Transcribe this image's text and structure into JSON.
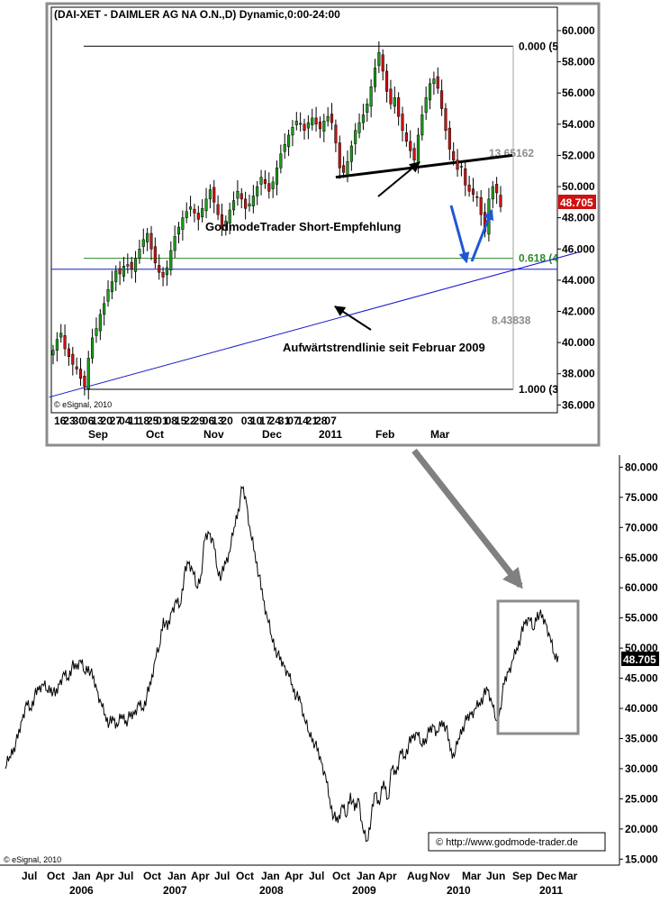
{
  "chart_data": [
    {
      "type": "candlestick",
      "title": "(DAI-XET - DAIMLER AG NA O.N.,D) Dynamic,0:00-24:00",
      "watermark": "© eSignal, 2010",
      "y_axis": {
        "position": "right",
        "ylim": [
          35.5,
          61.5
        ],
        "ticks": [
          "36.000",
          "38.000",
          "40.000",
          "42.000",
          "44.000",
          "46.000",
          "48.000",
          "50.000",
          "52.000",
          "54.000",
          "56.000",
          "58.000",
          "60.000"
        ]
      },
      "x_axis": {
        "day_labels": [
          "16",
          "23",
          "30",
          "06",
          "13",
          "20",
          "27",
          "04",
          "11",
          "18",
          "25",
          "01",
          "08",
          "15",
          "22",
          "29",
          "06",
          "13",
          "20",
          "03",
          "10",
          "17",
          "24",
          "31",
          "07",
          "14",
          "21",
          "28",
          "07"
        ],
        "month_labels": [
          "Sep",
          "Oct",
          "Nov",
          "Dec",
          "2011",
          "Feb",
          "Mar"
        ]
      },
      "last_price": "48.705",
      "last_price_color": "#d11010",
      "up_color": "#1a9e1a",
      "down_color": "#cc1111",
      "close_series": [
        39.5,
        40.2,
        40.6,
        39.6,
        39.1,
        38.6,
        38.3,
        37.7,
        37.2,
        39.0,
        40.3,
        40.9,
        41.8,
        42.5,
        43.4,
        43.9,
        44.6,
        44.4,
        44.9,
        45.0,
        44.7,
        45.4,
        46.0,
        46.6,
        47.0,
        46.0,
        45.1,
        44.5,
        44.2,
        44.8,
        45.9,
        46.8,
        47.4,
        48.0,
        48.4,
        48.7,
        48.3,
        47.9,
        48.6,
        49.2,
        49.8,
        49.0,
        48.2,
        47.3,
        47.8,
        48.5,
        49.1,
        49.7,
        49.2,
        48.6,
        48.9,
        49.4,
        50.0,
        50.6,
        50.2,
        49.7,
        50.3,
        51.2,
        52.1,
        52.7,
        53.3,
        53.8,
        54.2,
        54.0,
        53.6,
        54.1,
        54.4,
        54.0,
        53.7,
        54.2,
        54.5,
        54.1,
        52.8,
        51.2,
        50.9,
        51.6,
        52.6,
        53.6,
        54.1,
        54.6,
        55.3,
        56.4,
        57.6,
        58.6,
        57.4,
        56.1,
        55.3,
        55.7,
        54.5,
        53.6,
        52.9,
        52.3,
        51.7,
        53.3,
        54.6,
        55.7,
        56.6,
        56.9,
        56.3,
        55.0,
        53.6,
        52.4,
        51.7,
        51.1,
        51.3,
        50.1,
        49.7,
        49.5,
        49.3,
        48.2,
        47.1,
        49.2,
        50.0,
        49.6,
        48.705
      ],
      "fibonacci": {
        "levels": [
          {
            "label": "0.000 (5",
            "value": 59.0,
            "color": "#000000"
          },
          {
            "label": "0.618 (4",
            "value": 45.4,
            "color": "#2a8a2a"
          },
          {
            "label": "1.000 (3",
            "value": 37.0,
            "color": "#000000"
          }
        ],
        "ranges": [
          "13.65162",
          "8.43838"
        ]
      },
      "hline_value": 44.7,
      "hline_color": "#1818cc",
      "neckline": {
        "from_index": 72,
        "from_value": 50.6,
        "to_index": 117,
        "to_value": 52.0
      },
      "trendline": {
        "from_index": -1,
        "from_value": 36.5,
        "to_index": 134,
        "to_value": 45.8,
        "color": "#1818cc"
      },
      "annotations": [
        "GodmodeTrader Short-Empfehlung",
        "Aufwärtstrendlinie seit Februar 2009"
      ]
    },
    {
      "type": "line",
      "watermark": "© eSignal, 2010",
      "y_axis": {
        "position": "right",
        "ylim": [
          14.0,
          82.0
        ],
        "ticks": [
          "15.000",
          "20.000",
          "25.000",
          "30.000",
          "35.000",
          "40.000",
          "45.000",
          "50.000",
          "55.000",
          "60.000",
          "65.000",
          "70.000",
          "75.000",
          "80.000"
        ]
      },
      "x_axis": {
        "month_labels": [
          "Jul",
          "Oct",
          "Jan",
          "Apr",
          "Jul",
          "Oct",
          "Jan",
          "Apr",
          "Jul",
          "Oct",
          "Jan",
          "Apr",
          "Jul",
          "Oct",
          "Jan",
          "Apr",
          "Aug",
          "Nov",
          "Mar",
          "Jun",
          "Sep",
          "Dec",
          "Mar"
        ],
        "year_labels": [
          "2006",
          "2007",
          "2008",
          "2009",
          "2010",
          "2011"
        ]
      },
      "last_price": "48.705",
      "last_price_color": "#000000",
      "close_series": [
        30.0,
        32.0,
        33.5,
        35.0,
        38.0,
        41.0,
        40.0,
        42.0,
        43.0,
        44.0,
        43.0,
        43.5,
        42.0,
        44.0,
        46.0,
        45.0,
        47.0,
        46.5,
        48.0,
        46.0,
        47.0,
        45.0,
        43.0,
        41.0,
        39.0,
        37.5,
        38.0,
        37.0,
        39.0,
        38.0,
        38.5,
        39.0,
        41.0,
        40.0,
        42.0,
        44.0,
        48.0,
        50.0,
        55.0,
        53.0,
        56.0,
        58.0,
        57.0,
        62.0,
        64.0,
        63.0,
        60.0,
        62.0,
        68.0,
        69.0,
        68.0,
        63.0,
        62.0,
        64.0,
        66.0,
        70.0,
        73.0,
        76.5,
        74.0,
        69.0,
        66.0,
        62.0,
        58.0,
        55.0,
        52.0,
        50.0,
        48.0,
        47.0,
        46.0,
        44.0,
        42.0,
        41.0,
        38.0,
        36.0,
        35.0,
        33.0,
        31.0,
        29.0,
        25.0,
        22.0,
        21.0,
        24.0,
        22.0,
        26.0,
        23.0,
        25.0,
        20.0,
        18.0,
        22.0,
        26.0,
        24.0,
        28.0,
        25.0,
        30.0,
        29.0,
        33.0,
        32.0,
        34.0,
        35.0,
        36.0,
        34.0,
        35.0,
        36.0,
        37.0,
        36.0,
        38.0,
        37.0,
        33.0,
        32.0,
        35.0,
        37.0,
        38.0,
        39.0,
        40.0,
        41.0,
        42.0,
        43.0,
        41.0,
        38.0,
        40.0,
        44.0,
        46.0,
        48.0,
        50.0,
        52.0,
        54.0,
        55.0,
        53.0,
        56.0,
        55.0,
        54.0,
        52.0,
        49.0,
        48.7
      ],
      "source_text": "© http://www.godmode-trader.de"
    }
  ]
}
